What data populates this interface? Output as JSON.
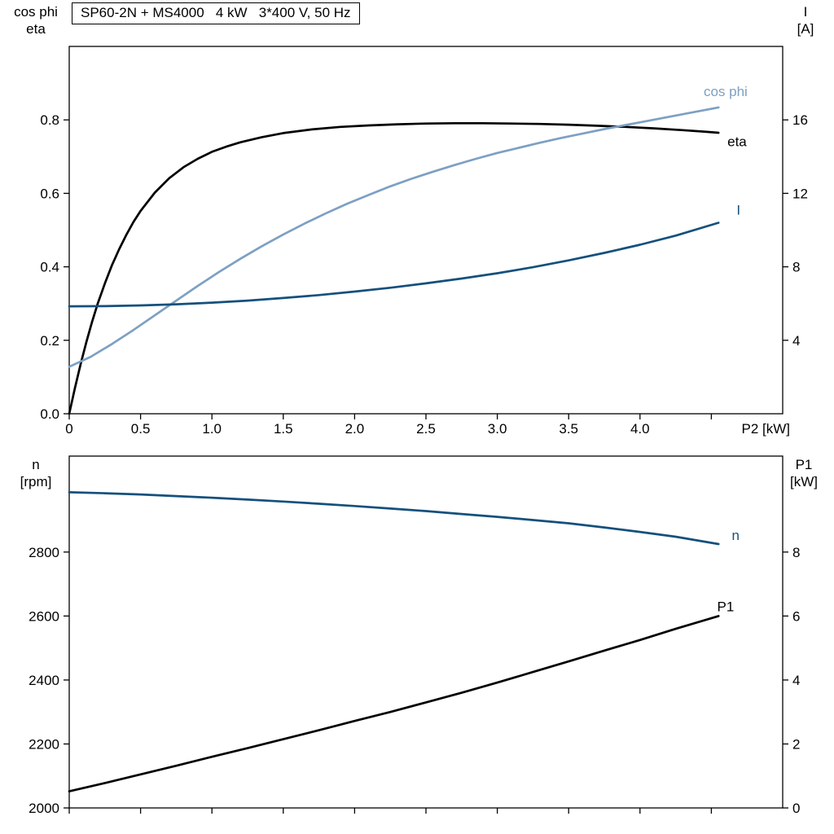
{
  "title": "SP60-2N + MS4000   4 kW   3*400 V, 50 Hz",
  "colors": {
    "frame": "#000000",
    "black_curve": "#000000",
    "light_blue": "#7da0c3",
    "dark_blue": "#14507c"
  },
  "axis_labels": {
    "top_left_1": "cos phi",
    "top_left_2": "eta",
    "top_right_1": "I",
    "top_right_2": "[A]",
    "bottom_left_1": "n",
    "bottom_left_2": "[rpm]",
    "bottom_right_1": "P1",
    "bottom_right_2": "[kW]",
    "x": "P2 [kW]"
  },
  "chart_data": [
    {
      "type": "line",
      "title": "SP60-2N + MS4000   4 kW   3*400 V, 50 Hz",
      "xlabel": "P2 [kW]",
      "xlim": [
        0,
        5.0
      ],
      "x_ticks": [
        {
          "v": 0,
          "label": "0"
        },
        {
          "v": 0.5,
          "label": "0.5"
        },
        {
          "v": 1.0,
          "label": "1.0"
        },
        {
          "v": 1.5,
          "label": "1.5"
        },
        {
          "v": 2.0,
          "label": "2.0"
        },
        {
          "v": 2.5,
          "label": "2.5"
        },
        {
          "v": 3.0,
          "label": "3.0"
        },
        {
          "v": 3.5,
          "label": "3.5"
        },
        {
          "v": 4.0,
          "label": "4.0"
        },
        {
          "v": 4.5,
          "label": ""
        }
      ],
      "left": {
        "label": "cos phi / eta",
        "lim": [
          0,
          1.0
        ],
        "ticks": [
          {
            "v": 0.0,
            "label": "0.0"
          },
          {
            "v": 0.2,
            "label": "0.2"
          },
          {
            "v": 0.4,
            "label": "0.4"
          },
          {
            "v": 0.6,
            "label": "0.6"
          },
          {
            "v": 0.8,
            "label": "0.8"
          }
        ]
      },
      "right": {
        "label": "I [A]",
        "lim": [
          0,
          20
        ],
        "ticks": [
          {
            "v": 4,
            "label": "4"
          },
          {
            "v": 8,
            "label": "8"
          },
          {
            "v": 12,
            "label": "12"
          },
          {
            "v": 16,
            "label": "16"
          }
        ]
      },
      "series": [
        {
          "name": "eta",
          "slug": "eta",
          "axis": "left",
          "color": "#000000",
          "label": {
            "text": "eta",
            "x": 4.68,
            "y": 0.742
          },
          "points": [
            [
              0,
              0
            ],
            [
              0.04,
              0.07
            ],
            [
              0.08,
              0.135
            ],
            [
              0.12,
              0.195
            ],
            [
              0.16,
              0.25
            ],
            [
              0.2,
              0.3
            ],
            [
              0.25,
              0.355
            ],
            [
              0.3,
              0.405
            ],
            [
              0.35,
              0.448
            ],
            [
              0.4,
              0.487
            ],
            [
              0.45,
              0.522
            ],
            [
              0.5,
              0.552
            ],
            [
              0.6,
              0.602
            ],
            [
              0.7,
              0.641
            ],
            [
              0.8,
              0.671
            ],
            [
              0.9,
              0.694
            ],
            [
              1.0,
              0.713
            ],
            [
              1.1,
              0.727
            ],
            [
              1.2,
              0.739
            ],
            [
              1.35,
              0.753
            ],
            [
              1.5,
              0.764
            ],
            [
              1.7,
              0.774
            ],
            [
              1.9,
              0.781
            ],
            [
              2.1,
              0.785
            ],
            [
              2.3,
              0.788
            ],
            [
              2.5,
              0.79
            ],
            [
              2.7,
              0.791
            ],
            [
              2.9,
              0.791
            ],
            [
              3.1,
              0.79
            ],
            [
              3.3,
              0.789
            ],
            [
              3.5,
              0.787
            ],
            [
              3.7,
              0.784
            ],
            [
              3.9,
              0.781
            ],
            [
              4.1,
              0.777
            ],
            [
              4.3,
              0.772
            ],
            [
              4.45,
              0.768
            ],
            [
              4.55,
              0.765
            ]
          ]
        },
        {
          "name": "cos phi",
          "slug": "cos-phi",
          "axis": "left",
          "color": "#7da0c3",
          "label": {
            "text": "cos phi",
            "x": 4.6,
            "y": 0.878
          },
          "points": [
            [
              0,
              0.128
            ],
            [
              0.15,
              0.155
            ],
            [
              0.3,
              0.19
            ],
            [
              0.45,
              0.228
            ],
            [
              0.6,
              0.268
            ],
            [
              0.75,
              0.308
            ],
            [
              0.9,
              0.348
            ],
            [
              1.05,
              0.386
            ],
            [
              1.2,
              0.422
            ],
            [
              1.35,
              0.456
            ],
            [
              1.5,
              0.488
            ],
            [
              1.65,
              0.518
            ],
            [
              1.8,
              0.546
            ],
            [
              1.95,
              0.572
            ],
            [
              2.1,
              0.596
            ],
            [
              2.25,
              0.619
            ],
            [
              2.4,
              0.64
            ],
            [
              2.55,
              0.659
            ],
            [
              2.7,
              0.677
            ],
            [
              2.85,
              0.694
            ],
            [
              3.0,
              0.71
            ],
            [
              3.15,
              0.724
            ],
            [
              3.3,
              0.738
            ],
            [
              3.45,
              0.751
            ],
            [
              3.6,
              0.763
            ],
            [
              3.75,
              0.775
            ],
            [
              3.9,
              0.786
            ],
            [
              4.05,
              0.797
            ],
            [
              4.2,
              0.808
            ],
            [
              4.35,
              0.819
            ],
            [
              4.55,
              0.834
            ]
          ]
        },
        {
          "name": "I",
          "slug": "current",
          "axis": "right",
          "color": "#14507c",
          "label": {
            "text": "I",
            "x": 4.69,
            "y": 11.1
          },
          "points": [
            [
              0,
              5.85
            ],
            [
              0.25,
              5.86
            ],
            [
              0.5,
              5.9
            ],
            [
              0.75,
              5.96
            ],
            [
              1.0,
              6.05
            ],
            [
              1.25,
              6.16
            ],
            [
              1.5,
              6.3
            ],
            [
              1.75,
              6.46
            ],
            [
              2.0,
              6.65
            ],
            [
              2.25,
              6.86
            ],
            [
              2.5,
              7.1
            ],
            [
              2.75,
              7.36
            ],
            [
              3.0,
              7.65
            ],
            [
              3.25,
              7.98
            ],
            [
              3.5,
              8.35
            ],
            [
              3.75,
              8.76
            ],
            [
              4.0,
              9.2
            ],
            [
              4.25,
              9.7
            ],
            [
              4.55,
              10.4
            ]
          ]
        }
      ]
    },
    {
      "type": "line",
      "title": "",
      "xlabel": "",
      "xlim": [
        0,
        5.0
      ],
      "x_ticks": [
        {
          "v": 0,
          "label": ""
        },
        {
          "v": 0.5,
          "label": ""
        },
        {
          "v": 1.0,
          "label": ""
        },
        {
          "v": 1.5,
          "label": ""
        },
        {
          "v": 2.0,
          "label": ""
        },
        {
          "v": 2.5,
          "label": ""
        },
        {
          "v": 3.0,
          "label": ""
        },
        {
          "v": 3.5,
          "label": ""
        },
        {
          "v": 4.0,
          "label": ""
        },
        {
          "v": 4.5,
          "label": ""
        }
      ],
      "left": {
        "label": "n [rpm]",
        "lim": [
          2000,
          3100
        ],
        "ticks": [
          {
            "v": 2000,
            "label": "2000"
          },
          {
            "v": 2200,
            "label": "2200"
          },
          {
            "v": 2400,
            "label": "2400"
          },
          {
            "v": 2600,
            "label": "2600"
          },
          {
            "v": 2800,
            "label": "2800"
          }
        ]
      },
      "right": {
        "label": "P1 [kW]",
        "lim": [
          0,
          11
        ],
        "ticks": [
          {
            "v": 0,
            "label": "0"
          },
          {
            "v": 2,
            "label": "2"
          },
          {
            "v": 4,
            "label": "4"
          },
          {
            "v": 6,
            "label": "6"
          },
          {
            "v": 8,
            "label": "8"
          }
        ]
      },
      "series": [
        {
          "name": "n",
          "slug": "speed",
          "axis": "left",
          "color": "#14507c",
          "label": {
            "text": "n",
            "x": 4.67,
            "y": 2853
          },
          "points": [
            [
              0,
              2987
            ],
            [
              0.25,
              2984
            ],
            [
              0.5,
              2980
            ],
            [
              0.75,
              2975
            ],
            [
              1.0,
              2970
            ],
            [
              1.25,
              2964
            ],
            [
              1.5,
              2958
            ],
            [
              1.75,
              2951
            ],
            [
              2.0,
              2944
            ],
            [
              2.25,
              2936
            ],
            [
              2.5,
              2928
            ],
            [
              2.75,
              2919
            ],
            [
              3.0,
              2910
            ],
            [
              3.25,
              2900
            ],
            [
              3.5,
              2890
            ],
            [
              3.75,
              2877
            ],
            [
              4.0,
              2863
            ],
            [
              4.25,
              2848
            ],
            [
              4.55,
              2825
            ]
          ]
        },
        {
          "name": "P1",
          "slug": "p1",
          "axis": "right",
          "color": "#000000",
          "label": {
            "text": "P1",
            "x": 4.6,
            "y": 6.3
          },
          "points": [
            [
              0,
              0.52
            ],
            [
              0.25,
              0.78
            ],
            [
              0.5,
              1.05
            ],
            [
              0.75,
              1.32
            ],
            [
              1.0,
              1.6
            ],
            [
              1.25,
              1.87
            ],
            [
              1.5,
              2.15
            ],
            [
              1.75,
              2.43
            ],
            [
              2.0,
              2.72
            ],
            [
              2.25,
              3.0
            ],
            [
              2.5,
              3.3
            ],
            [
              2.75,
              3.6
            ],
            [
              3.0,
              3.92
            ],
            [
              3.25,
              4.25
            ],
            [
              3.5,
              4.58
            ],
            [
              3.75,
              4.92
            ],
            [
              4.0,
              5.25
            ],
            [
              4.25,
              5.6
            ],
            [
              4.55,
              6.0
            ]
          ]
        }
      ]
    }
  ]
}
